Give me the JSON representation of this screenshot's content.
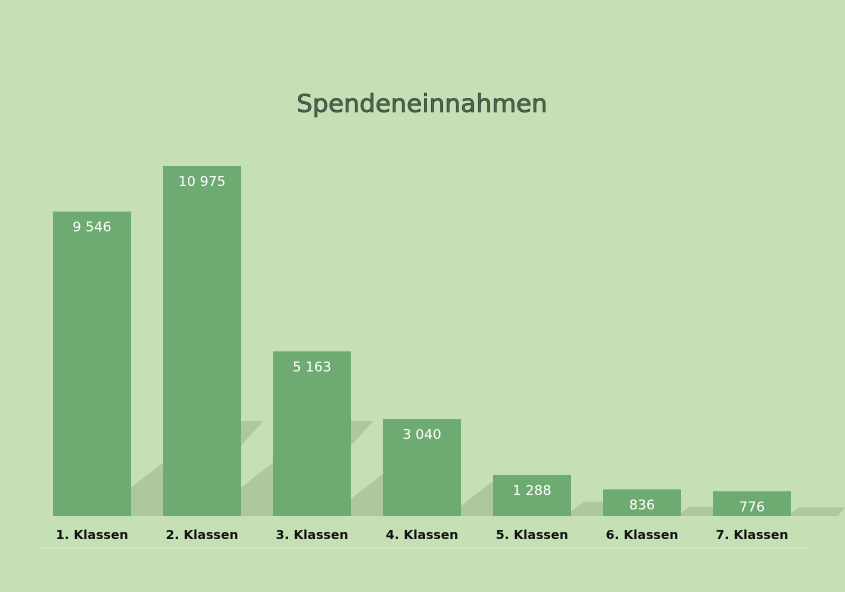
{
  "chart_data": {
    "type": "bar",
    "title": "Spendeneinnahmen",
    "categories": [
      "1. Klassen",
      "2. Klassen",
      "3. Klassen",
      "4. Klassen",
      "5. Klassen",
      "6. Klassen",
      "7. Klassen"
    ],
    "values": [
      9546,
      10975,
      5163,
      3040,
      1288,
      836,
      776
    ],
    "data_labels": [
      "9 546",
      "10 975",
      "5 163",
      "3 040",
      "1 288",
      "836",
      "776"
    ],
    "xlabel": "",
    "ylabel": "",
    "ylim": [
      0,
      11000
    ],
    "grid": false,
    "legend": "none",
    "colors": {
      "bar": "#6dab72",
      "background": "#c5e0b4",
      "shadow": "#9fb88f"
    }
  }
}
